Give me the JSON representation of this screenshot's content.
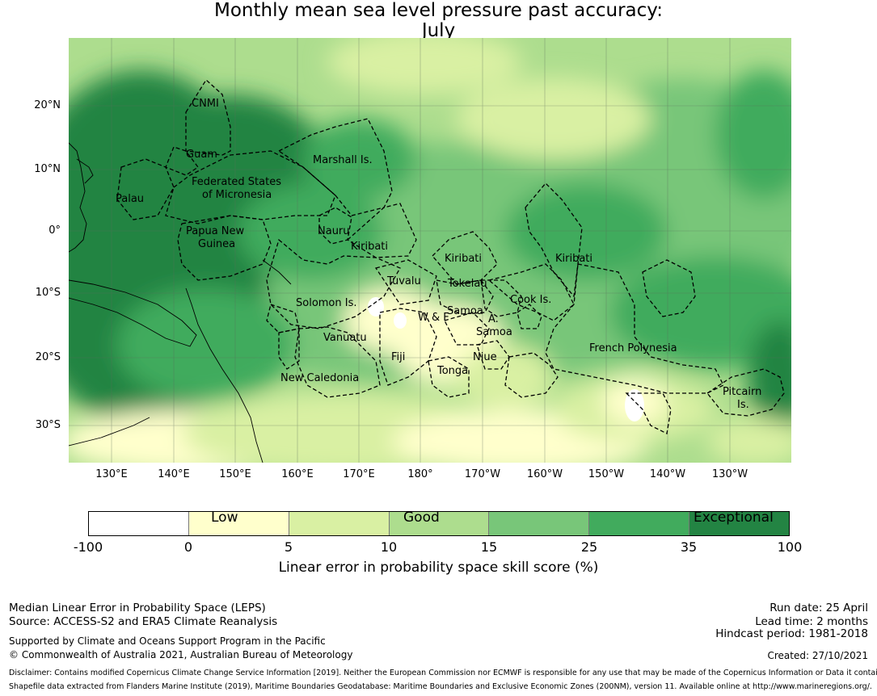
{
  "title_line1": "Monthly mean sea level pressure past accuracy:",
  "title_line2": "July",
  "lat_labels": [
    "20°N",
    "10°N",
    "0°",
    "10°S",
    "20°S",
    "30°S"
  ],
  "lon_labels": [
    "130°E",
    "140°E",
    "150°E",
    "160°E",
    "170°E",
    "180°",
    "170°W",
    "160°W",
    "150°W",
    "140°W",
    "130°W"
  ],
  "regions": {
    "cnmi": "CNMI",
    "guam": "Guam",
    "palau": "Palau",
    "fsm_1": "Federated States",
    "fsm_2": "of Micronesia",
    "marshall": "Marshall Is.",
    "png_1": "Papua New",
    "png_2": "Guinea",
    "nauru": "Nauru",
    "kiribati_w": "Kiribati",
    "kiribati_c": "Kiribati",
    "kiribati_e": "Kiribati",
    "tuvalu": "Tuvalu",
    "tokelau": "Tokelau",
    "solomon": "Solomon Is.",
    "samoa": "Samoa",
    "wf": "W & F",
    "as": "A.",
    "as_samoa": "Samoa",
    "cook": "Cook Is.",
    "vanuatu": "Vanuatu",
    "fiji": "Fiji",
    "niue": "Niue",
    "tonga": "Tonga",
    "french_polynesia": "French Polynesia",
    "new_caledonia": "New Caledonia",
    "pitcairn_1": "Pitcairn",
    "pitcairn_2": "Is."
  },
  "colorbar": {
    "ticks": [
      "-100",
      "0",
      "5",
      "10",
      "15",
      "25",
      "35",
      "100"
    ],
    "colors": [
      "#ffffff",
      "#ffffcc",
      "#d9f0a3",
      "#addd8e",
      "#78c679",
      "#41ab5d",
      "#238443"
    ],
    "categories": {
      "low": "Low",
      "good": "Good",
      "exceptional": "Exceptional"
    },
    "label": "Linear error in probability space skill score (%)"
  },
  "footer": {
    "line1": "Median Linear Error in Probability Space (LEPS)",
    "line2": "Source: ACCESS-S2 and ERA5 Climate Reanalysis",
    "line3": "Supported by Climate and Oceans Support Program in the Pacific",
    "line4": "© Commonwealth of Australia 2021, Australian Bureau of Meteorology",
    "run_date": "Run date: 25 April",
    "lead_time": "Lead time: 2 months",
    "hindcast": "Hindcast period: 1981-2018",
    "created": "Created: 27/10/2021",
    "disclaimer": "Disclaimer: Contains modified Copernicus Climate Change Service Information [2019]. Neither the European Commission nor ECMWF is responsible for any use that may be made of the Copernicus Information or Data it contains.",
    "shapefile": "Shapefile data extracted from Flanders Marine Institute (2019), Maritime Boundaries Geodatabase: Maritime Boundaries and Exclusive Economic Zones (200NM), version 11. Available online at http://www.marineregions.org/."
  }
}
